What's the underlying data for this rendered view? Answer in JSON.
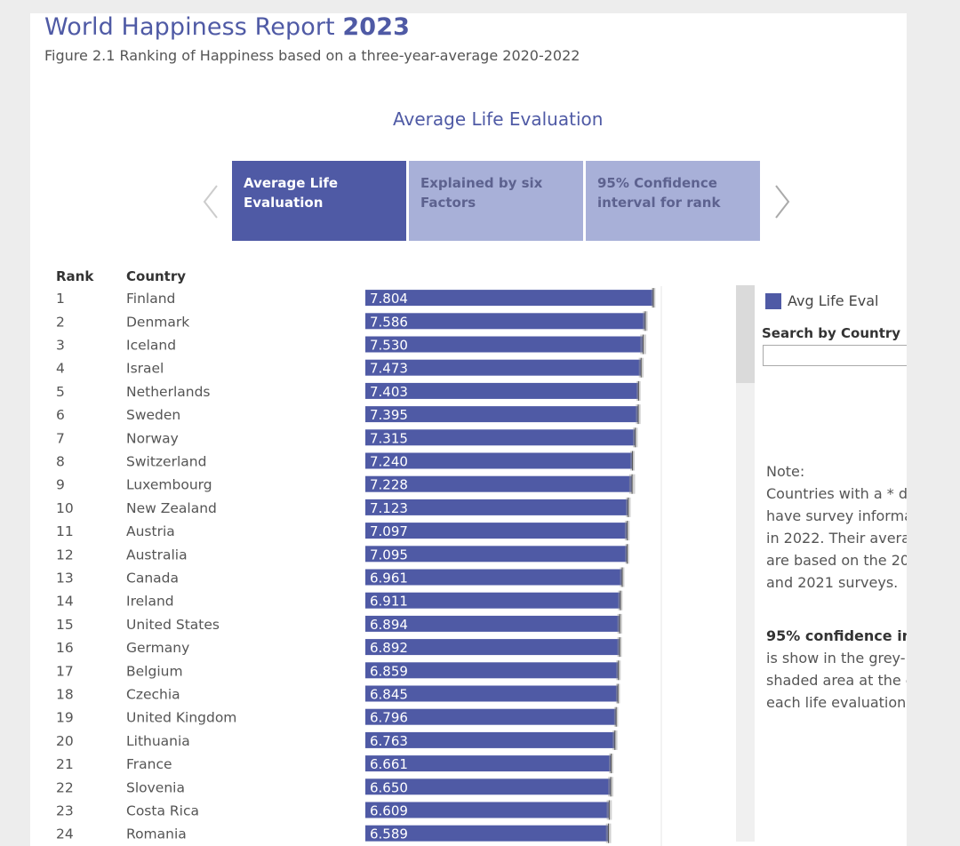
{
  "header": {
    "title_prefix": "World Happiness Report",
    "title_year": "2023",
    "subtitle": "Figure 2.1 Ranking of Happiness based on a three-year-average 2020-2022"
  },
  "view_title": "Average Life Evaluation",
  "tabs": [
    {
      "label_line1": "Average Life",
      "label_line2": "Evaluation",
      "active": true
    },
    {
      "label_line1": "Explained by six",
      "label_line2": "Factors",
      "active": false
    },
    {
      "label_line1": "95% Confidence",
      "label_line2": "interval for rank",
      "active": false
    }
  ],
  "icons": {
    "prev": "chevron-left-icon",
    "next": "chevron-right-icon"
  },
  "columns": {
    "rank": "Rank",
    "country": "Country"
  },
  "legend": {
    "label": "Avg Life Eval",
    "color": "#4f5aa5"
  },
  "search": {
    "label": "Search by Country",
    "placeholder": ""
  },
  "notes": {
    "note_heading": "Note:",
    "note_lines": [
      "Countries with a * d",
      "have survey informa",
      "in 2022. Their avera",
      "are based on the 20",
      "and 2021 surveys."
    ],
    "ci_heading": "95% confidence inte",
    "ci_lines": [
      "is show in the grey-",
      "shaded area at the e",
      "each life evaluation"
    ]
  },
  "chart_data": {
    "type": "bar",
    "orientation": "horizontal",
    "categories": [
      "Finland",
      "Denmark",
      "Iceland",
      "Israel",
      "Netherlands",
      "Sweden",
      "Norway",
      "Switzerland",
      "Luxembourg",
      "New Zealand",
      "Austria",
      "Australia",
      "Canada",
      "Ireland",
      "United States",
      "Germany",
      "Belgium",
      "Czechia",
      "United Kingdom",
      "Lithuania",
      "France",
      "Slovenia",
      "Costa Rica",
      "Romania"
    ],
    "ranks": [
      "1",
      "2",
      "3",
      "4",
      "5",
      "6",
      "7",
      "8",
      "9",
      "10",
      "11",
      "12",
      "13",
      "14",
      "15",
      "16",
      "17",
      "18",
      "19",
      "20",
      "21",
      "22",
      "23",
      "24"
    ],
    "series": [
      {
        "name": "Avg Life Eval",
        "values": [
          7.804,
          7.586,
          7.53,
          7.473,
          7.403,
          7.395,
          7.315,
          7.24,
          7.228,
          7.123,
          7.097,
          7.095,
          6.961,
          6.911,
          6.894,
          6.892,
          6.859,
          6.845,
          6.796,
          6.763,
          6.661,
          6.65,
          6.609,
          6.589
        ],
        "color": "#4f5aa5"
      }
    ],
    "value_labels": [
      "7.804",
      "7.586",
      "7.530",
      "7.473",
      "7.403",
      "7.395",
      "7.315",
      "7.240",
      "7.228",
      "7.123",
      "7.097",
      "7.095",
      "6.961",
      "6.911",
      "6.894",
      "6.892",
      "6.859",
      "6.845",
      "6.796",
      "6.763",
      "6.661",
      "6.650",
      "6.609",
      "6.589"
    ],
    "ci_low": [
      7.75,
      7.52,
      7.45,
      7.41,
      7.35,
      7.33,
      7.25,
      7.18,
      7.15,
      7.06,
      7.03,
      7.04,
      6.9,
      6.85,
      6.83,
      6.83,
      6.8,
      6.79,
      6.74,
      6.7,
      6.6,
      6.58,
      6.54,
      6.52
    ],
    "ci_high": [
      7.86,
      7.65,
      7.61,
      7.54,
      7.46,
      7.46,
      7.38,
      7.3,
      7.31,
      7.19,
      7.16,
      7.15,
      7.02,
      6.97,
      6.96,
      6.95,
      6.92,
      6.9,
      6.85,
      6.83,
      6.72,
      6.72,
      6.68,
      6.66
    ],
    "xlim": [
      0,
      7.804
    ],
    "ci_color": "#999999",
    "grid": false
  }
}
